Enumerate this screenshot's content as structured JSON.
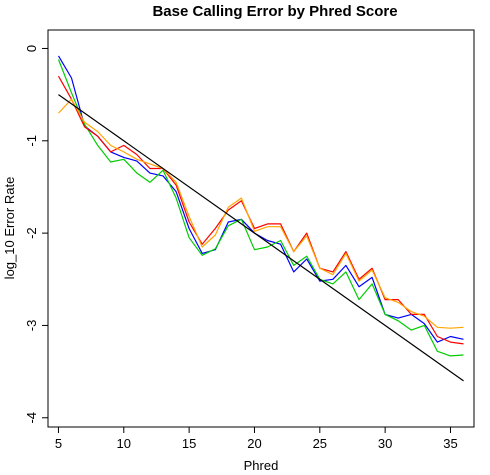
{
  "chart_data": {
    "type": "line",
    "title": "Base Calling Error by Phred Score",
    "xlabel": "Phred",
    "ylabel": "log_10 Error Rate",
    "xlim": [
      4.2,
      36.8
    ],
    "ylim": [
      -4.1,
      0.2
    ],
    "xticks": [
      5,
      10,
      15,
      20,
      25,
      30,
      35
    ],
    "yticks": [
      0,
      -1,
      -2,
      -3,
      -4
    ],
    "grid": false,
    "legend": "none",
    "x": [
      5,
      6,
      7,
      8,
      9,
      10,
      11,
      12,
      13,
      14,
      15,
      16,
      17,
      18,
      19,
      20,
      21,
      22,
      23,
      24,
      25,
      26,
      27,
      28,
      29,
      30,
      31,
      32,
      33,
      34,
      35,
      36
    ],
    "series": [
      {
        "color": "#0000ff",
        "values": [
          -0.08,
          -0.32,
          -0.84,
          -0.95,
          -1.12,
          -1.18,
          -1.22,
          -1.35,
          -1.38,
          -1.55,
          -1.95,
          -2.22,
          -2.18,
          -1.88,
          -1.85,
          -2.0,
          -2.08,
          -2.12,
          -2.42,
          -2.28,
          -2.52,
          -2.5,
          -2.35,
          -2.58,
          -2.48,
          -2.88,
          -2.92,
          -2.88,
          -2.98,
          -3.18,
          -3.12,
          -3.15
        ]
      },
      {
        "color": "#00cc00",
        "values": [
          -0.12,
          -0.48,
          -0.82,
          -1.05,
          -1.23,
          -1.2,
          -1.35,
          -1.45,
          -1.32,
          -1.62,
          -2.05,
          -2.24,
          -2.17,
          -1.92,
          -1.85,
          -2.18,
          -2.15,
          -2.08,
          -2.35,
          -2.25,
          -2.5,
          -2.55,
          -2.42,
          -2.72,
          -2.55,
          -2.88,
          -2.95,
          -3.05,
          -3.0,
          -3.28,
          -3.33,
          -3.32
        ]
      },
      {
        "color": "#ff0000",
        "values": [
          -0.3,
          -0.55,
          -0.85,
          -0.95,
          -1.12,
          -1.05,
          -1.15,
          -1.3,
          -1.3,
          -1.48,
          -1.88,
          -2.12,
          -1.95,
          -1.75,
          -1.65,
          -1.95,
          -1.9,
          -1.9,
          -2.2,
          -2.0,
          -2.38,
          -2.42,
          -2.2,
          -2.5,
          -2.38,
          -2.72,
          -2.72,
          -2.88,
          -2.88,
          -3.12,
          -3.18,
          -3.2
        ]
      },
      {
        "color": "#ffa500",
        "values": [
          -0.7,
          -0.55,
          -0.8,
          -0.9,
          -1.05,
          -1.12,
          -1.2,
          -1.25,
          -1.3,
          -1.45,
          -1.82,
          -2.15,
          -2.02,
          -1.72,
          -1.62,
          -1.98,
          -1.93,
          -1.93,
          -2.2,
          -2.03,
          -2.38,
          -2.45,
          -2.22,
          -2.52,
          -2.4,
          -2.7,
          -2.75,
          -2.85,
          -2.9,
          -3.02,
          -3.03,
          -3.02
        ]
      }
    ],
    "trend_line": {
      "color": "#000000",
      "x": [
        5,
        36
      ],
      "y": [
        -0.5,
        -3.6
      ]
    }
  }
}
